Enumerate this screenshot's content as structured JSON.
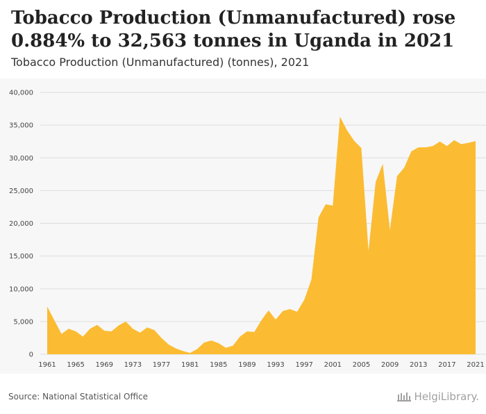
{
  "headline": "Tobacco Production (Unmanufactured) rose 0.884% to 32,563 tonnes in Uganda in 2021",
  "subtitle": "Tobacco Production (Unmanufactured) (tonnes), 2021",
  "source": "Source: National Statistical Office",
  "brand": "HelgiLibrary.",
  "colors": {
    "area": "#fbbc33",
    "panel": "#f7f7f7",
    "grid": "#dddddd"
  },
  "chart_data": {
    "type": "area",
    "title": "Tobacco Production (Unmanufactured) (tonnes), 2021",
    "xlabel": "",
    "ylabel": "",
    "ylim": [
      0,
      40000
    ],
    "yticks": [
      0,
      5000,
      10000,
      15000,
      20000,
      25000,
      30000,
      35000,
      40000
    ],
    "ytick_labels": [
      "0",
      "5,000",
      "10,000",
      "15,000",
      "20,000",
      "25,000",
      "30,000",
      "35,000",
      "40,000"
    ],
    "xticks": [
      1961,
      1965,
      1969,
      1973,
      1977,
      1981,
      1985,
      1989,
      1993,
      1997,
      2001,
      2005,
      2009,
      2013,
      2017,
      2021
    ],
    "grid": true,
    "legend": "none",
    "x": [
      1961,
      1962,
      1963,
      1964,
      1965,
      1966,
      1967,
      1968,
      1969,
      1970,
      1971,
      1972,
      1973,
      1974,
      1975,
      1976,
      1977,
      1978,
      1979,
      1980,
      1981,
      1982,
      1983,
      1984,
      1985,
      1986,
      1987,
      1988,
      1989,
      1990,
      1991,
      1992,
      1993,
      1994,
      1995,
      1996,
      1997,
      1998,
      1999,
      2000,
      2001,
      2002,
      2003,
      2004,
      2005,
      2006,
      2007,
      2008,
      2009,
      2010,
      2011,
      2012,
      2013,
      2014,
      2015,
      2016,
      2017,
      2018,
      2019,
      2020,
      2021
    ],
    "series": [
      {
        "values": [
          7300,
          5200,
          3100,
          3900,
          3500,
          2700,
          3900,
          4500,
          3600,
          3500,
          4400,
          5000,
          3900,
          3300,
          4100,
          3700,
          2500,
          1500,
          900,
          500,
          200,
          800,
          1800,
          2100,
          1700,
          1000,
          1300,
          2700,
          3500,
          3400,
          5200,
          6700,
          5300,
          6600,
          6900,
          6500,
          8300,
          11400,
          20900,
          22900,
          22700,
          36300,
          34200,
          32600,
          31500,
          15800,
          26300,
          29100,
          19000,
          27200,
          28500,
          31000,
          31600,
          31600,
          31800,
          32500,
          31800,
          32700,
          32100,
          32300,
          32563
        ]
      }
    ]
  }
}
